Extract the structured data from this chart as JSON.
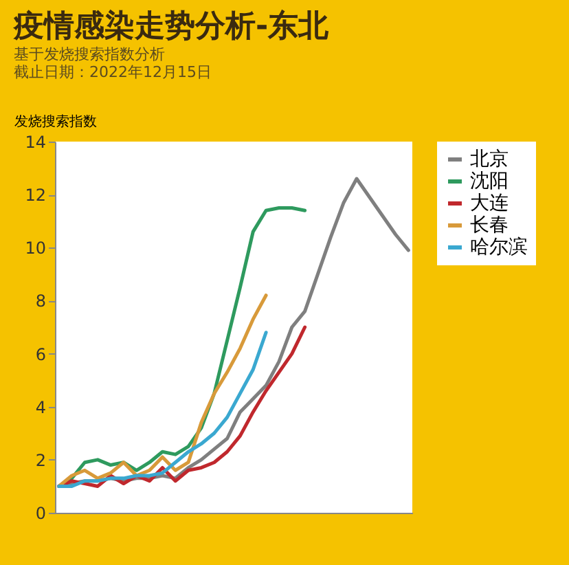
{
  "chart_data": {
    "type": "line",
    "title": "疫情感染走势分析-东北",
    "subtitle": "基于发烧搜索指数分析",
    "annotations": [
      "截止日期：2022年12月15日"
    ],
    "ylabel": "发烧搜索指数",
    "categories": [
      null,
      null,
      null,
      null,
      null,
      null,
      null,
      null,
      null,
      null,
      null,
      null,
      null,
      null,
      null,
      null,
      null,
      null,
      null,
      null,
      null,
      null,
      null,
      null,
      null,
      null,
      null,
      null
    ],
    "ylim": [
      0,
      14
    ],
    "yticks": [
      0,
      2,
      4,
      6,
      8,
      10,
      12,
      14
    ],
    "grid": false,
    "legend": "right",
    "tick_labels": "y",
    "marker": "none",
    "line_style": "solid",
    "series": [
      {
        "name": "北京",
        "color": "#7f7f7f",
        "values": [
          1.0,
          1.1,
          1.2,
          1.2,
          1.3,
          1.2,
          1.3,
          1.3,
          1.4,
          1.3,
          1.7,
          2.0,
          2.4,
          2.8,
          3.8,
          4.3,
          4.8,
          5.7,
          7.0,
          7.6,
          9.0,
          10.4,
          11.7,
          12.6,
          11.9,
          11.2,
          10.5,
          9.9
        ]
      },
      {
        "name": "沈阳",
        "color": "#2e9a5e",
        "values": [
          1.0,
          1.3,
          1.9,
          2.0,
          1.8,
          1.9,
          1.6,
          1.9,
          2.3,
          2.2,
          2.5,
          3.2,
          4.5,
          6.5,
          8.5,
          10.6,
          11.4,
          11.5,
          11.5,
          11.4,
          null,
          null,
          null,
          null,
          null,
          null,
          null,
          null
        ]
      },
      {
        "name": "大连",
        "color": "#c0282d",
        "values": [
          1.0,
          1.2,
          1.1,
          1.0,
          1.4,
          1.1,
          1.4,
          1.2,
          1.7,
          1.2,
          1.6,
          1.7,
          1.9,
          2.3,
          2.9,
          3.8,
          4.6,
          5.3,
          6.0,
          7.0,
          null,
          null,
          null,
          null,
          null,
          null,
          null,
          null
        ]
      },
      {
        "name": "长春",
        "color": "#d89a3a",
        "values": [
          1.0,
          1.4,
          1.6,
          1.3,
          1.5,
          1.9,
          1.4,
          1.6,
          2.1,
          1.6,
          1.9,
          3.4,
          4.5,
          5.3,
          6.2,
          7.3,
          8.2,
          null,
          null,
          null,
          null,
          null,
          null,
          null,
          null,
          null,
          null,
          null
        ]
      },
      {
        "name": "哈尔滨",
        "color": "#3aa8d0",
        "values": [
          1.0,
          1.0,
          1.2,
          1.2,
          1.3,
          1.3,
          1.4,
          1.4,
          1.5,
          1.9,
          2.3,
          2.6,
          3.0,
          3.6,
          4.5,
          5.4,
          6.8,
          null,
          null,
          null,
          null,
          null,
          null,
          null,
          null,
          null,
          null,
          null
        ]
      }
    ]
  }
}
